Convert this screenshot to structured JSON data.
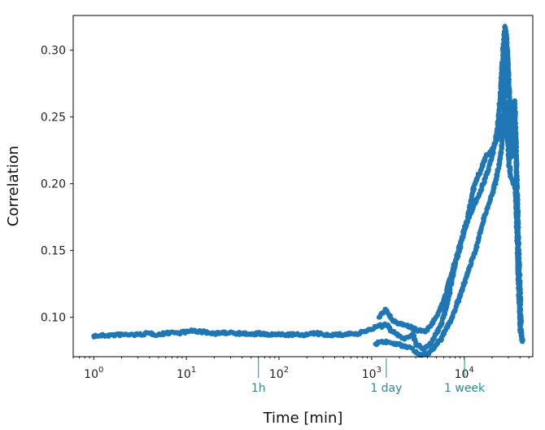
{
  "chart_data": {
    "type": "scatter",
    "title": "",
    "xlabel": "Time [min]",
    "ylabel": "Correlation",
    "xscale": "log",
    "xlim": [
      0.6,
      55000
    ],
    "ylim": [
      0.0705,
      0.326
    ],
    "grid": false,
    "legend": "none",
    "x_ticks": [
      {
        "value": 1,
        "base": "10",
        "exp": "0"
      },
      {
        "value": 10,
        "base": "10",
        "exp": "1"
      },
      {
        "value": 100,
        "base": "10",
        "exp": "2"
      },
      {
        "value": 1000,
        "base": "10",
        "exp": "3"
      },
      {
        "value": 10000,
        "base": "10",
        "exp": "4"
      }
    ],
    "y_ticks": [
      {
        "value": 0.1,
        "label": "0.10"
      },
      {
        "value": 0.15,
        "label": "0.15"
      },
      {
        "value": 0.2,
        "label": "0.20"
      },
      {
        "value": 0.25,
        "label": "0.25"
      },
      {
        "value": 0.3,
        "label": "0.30"
      }
    ],
    "annotations": [
      {
        "x": 60,
        "label": "1h"
      },
      {
        "x": 1440,
        "label": "1 day"
      },
      {
        "x": 10080,
        "label": "1 week"
      }
    ],
    "series_color": "#1f77b4",
    "annotation_color": "#2a8a9c",
    "series": [
      {
        "x": [
          1,
          2,
          3,
          4,
          5,
          6,
          7,
          8,
          9,
          10,
          12,
          14,
          16,
          18,
          20,
          25,
          30,
          35,
          40,
          50,
          60,
          70,
          80,
          90,
          100,
          120,
          150,
          200,
          250,
          300,
          400,
          500,
          600,
          700,
          800,
          900,
          1000,
          1100,
          1200,
          1300,
          1400,
          1500,
          1600,
          1800,
          2000,
          2200,
          2500,
          2800,
          3000,
          3300,
          3600,
          4000,
          4500,
          5000,
          5500,
          6000,
          6500,
          7000,
          7500,
          8000,
          9000,
          10000,
          11000,
          12000,
          13000,
          14000,
          15000,
          16000,
          17000,
          18000,
          20000,
          22000,
          24000,
          26000,
          27000,
          28000,
          29000,
          30000,
          31000,
          32000,
          33000,
          34000,
          35000,
          36000,
          37000,
          38000,
          39000,
          40000,
          41000,
          42000,
          43000
        ],
        "y": [
          0.086,
          0.087,
          0.087,
          0.088,
          0.087,
          0.088,
          0.089,
          0.088,
          0.089,
          0.089,
          0.09,
          0.089,
          0.089,
          0.088,
          0.088,
          0.088,
          0.089,
          0.088,
          0.088,
          0.087,
          0.088,
          0.087,
          0.087,
          0.087,
          0.087,
          0.087,
          0.087,
          0.087,
          0.088,
          0.087,
          0.087,
          0.087,
          0.088,
          0.087,
          0.089,
          0.09,
          0.091,
          0.093,
          0.094,
          0.093,
          0.095,
          0.094,
          0.09,
          0.088,
          0.086,
          0.084,
          0.085,
          0.088,
          0.08,
          0.078,
          0.076,
          0.078,
          0.082,
          0.088,
          0.093,
          0.1,
          0.11,
          0.12,
          0.13,
          0.14,
          0.152,
          0.165,
          0.175,
          0.19,
          0.2,
          0.205,
          0.21,
          0.215,
          0.22,
          0.222,
          0.225,
          0.232,
          0.238,
          0.245,
          0.26,
          0.29,
          0.3,
          0.28,
          0.25,
          0.22,
          0.23,
          0.24,
          0.245,
          0.235,
          0.19,
          0.15,
          0.12,
          0.1,
          0.09,
          0.085,
          0.083
        ]
      },
      {
        "x": [
          1200,
          1400,
          1700,
          2000,
          2600,
          3200,
          3800,
          4500,
          5200,
          6000,
          6800,
          7500,
          8500,
          9500,
          11000,
          13000,
          15000,
          17000,
          19000,
          21000,
          23000,
          25000,
          26500,
          27500,
          28500,
          29500,
          31000,
          33000,
          35000,
          36500,
          38000,
          39500,
          41000
        ],
        "y": [
          0.1,
          0.106,
          0.097,
          0.095,
          0.093,
          0.09,
          0.089,
          0.095,
          0.103,
          0.112,
          0.125,
          0.135,
          0.148,
          0.16,
          0.173,
          0.185,
          0.195,
          0.205,
          0.215,
          0.228,
          0.242,
          0.272,
          0.305,
          0.318,
          0.31,
          0.292,
          0.258,
          0.245,
          0.262,
          0.22,
          0.17,
          0.13,
          0.095
        ]
      },
      {
        "x": [
          1100,
          1300,
          1600,
          1900,
          2300,
          2700,
          3100,
          3500,
          4000,
          4400,
          4800,
          5500,
          6200,
          7200,
          8200,
          9200,
          10500,
          12500,
          14500,
          16500,
          18500,
          20500,
          22500,
          24500,
          26000,
          27000,
          28000,
          29000,
          30500,
          32000,
          34000,
          36000,
          38500,
          40500,
          42500
        ],
        "y": [
          0.08,
          0.082,
          0.081,
          0.08,
          0.078,
          0.077,
          0.073,
          0.072,
          0.073,
          0.075,
          0.078,
          0.083,
          0.09,
          0.098,
          0.108,
          0.118,
          0.13,
          0.145,
          0.16,
          0.175,
          0.185,
          0.195,
          0.205,
          0.22,
          0.235,
          0.25,
          0.258,
          0.245,
          0.215,
          0.205,
          0.2,
          0.195,
          0.13,
          0.09,
          0.082
        ]
      }
    ]
  }
}
